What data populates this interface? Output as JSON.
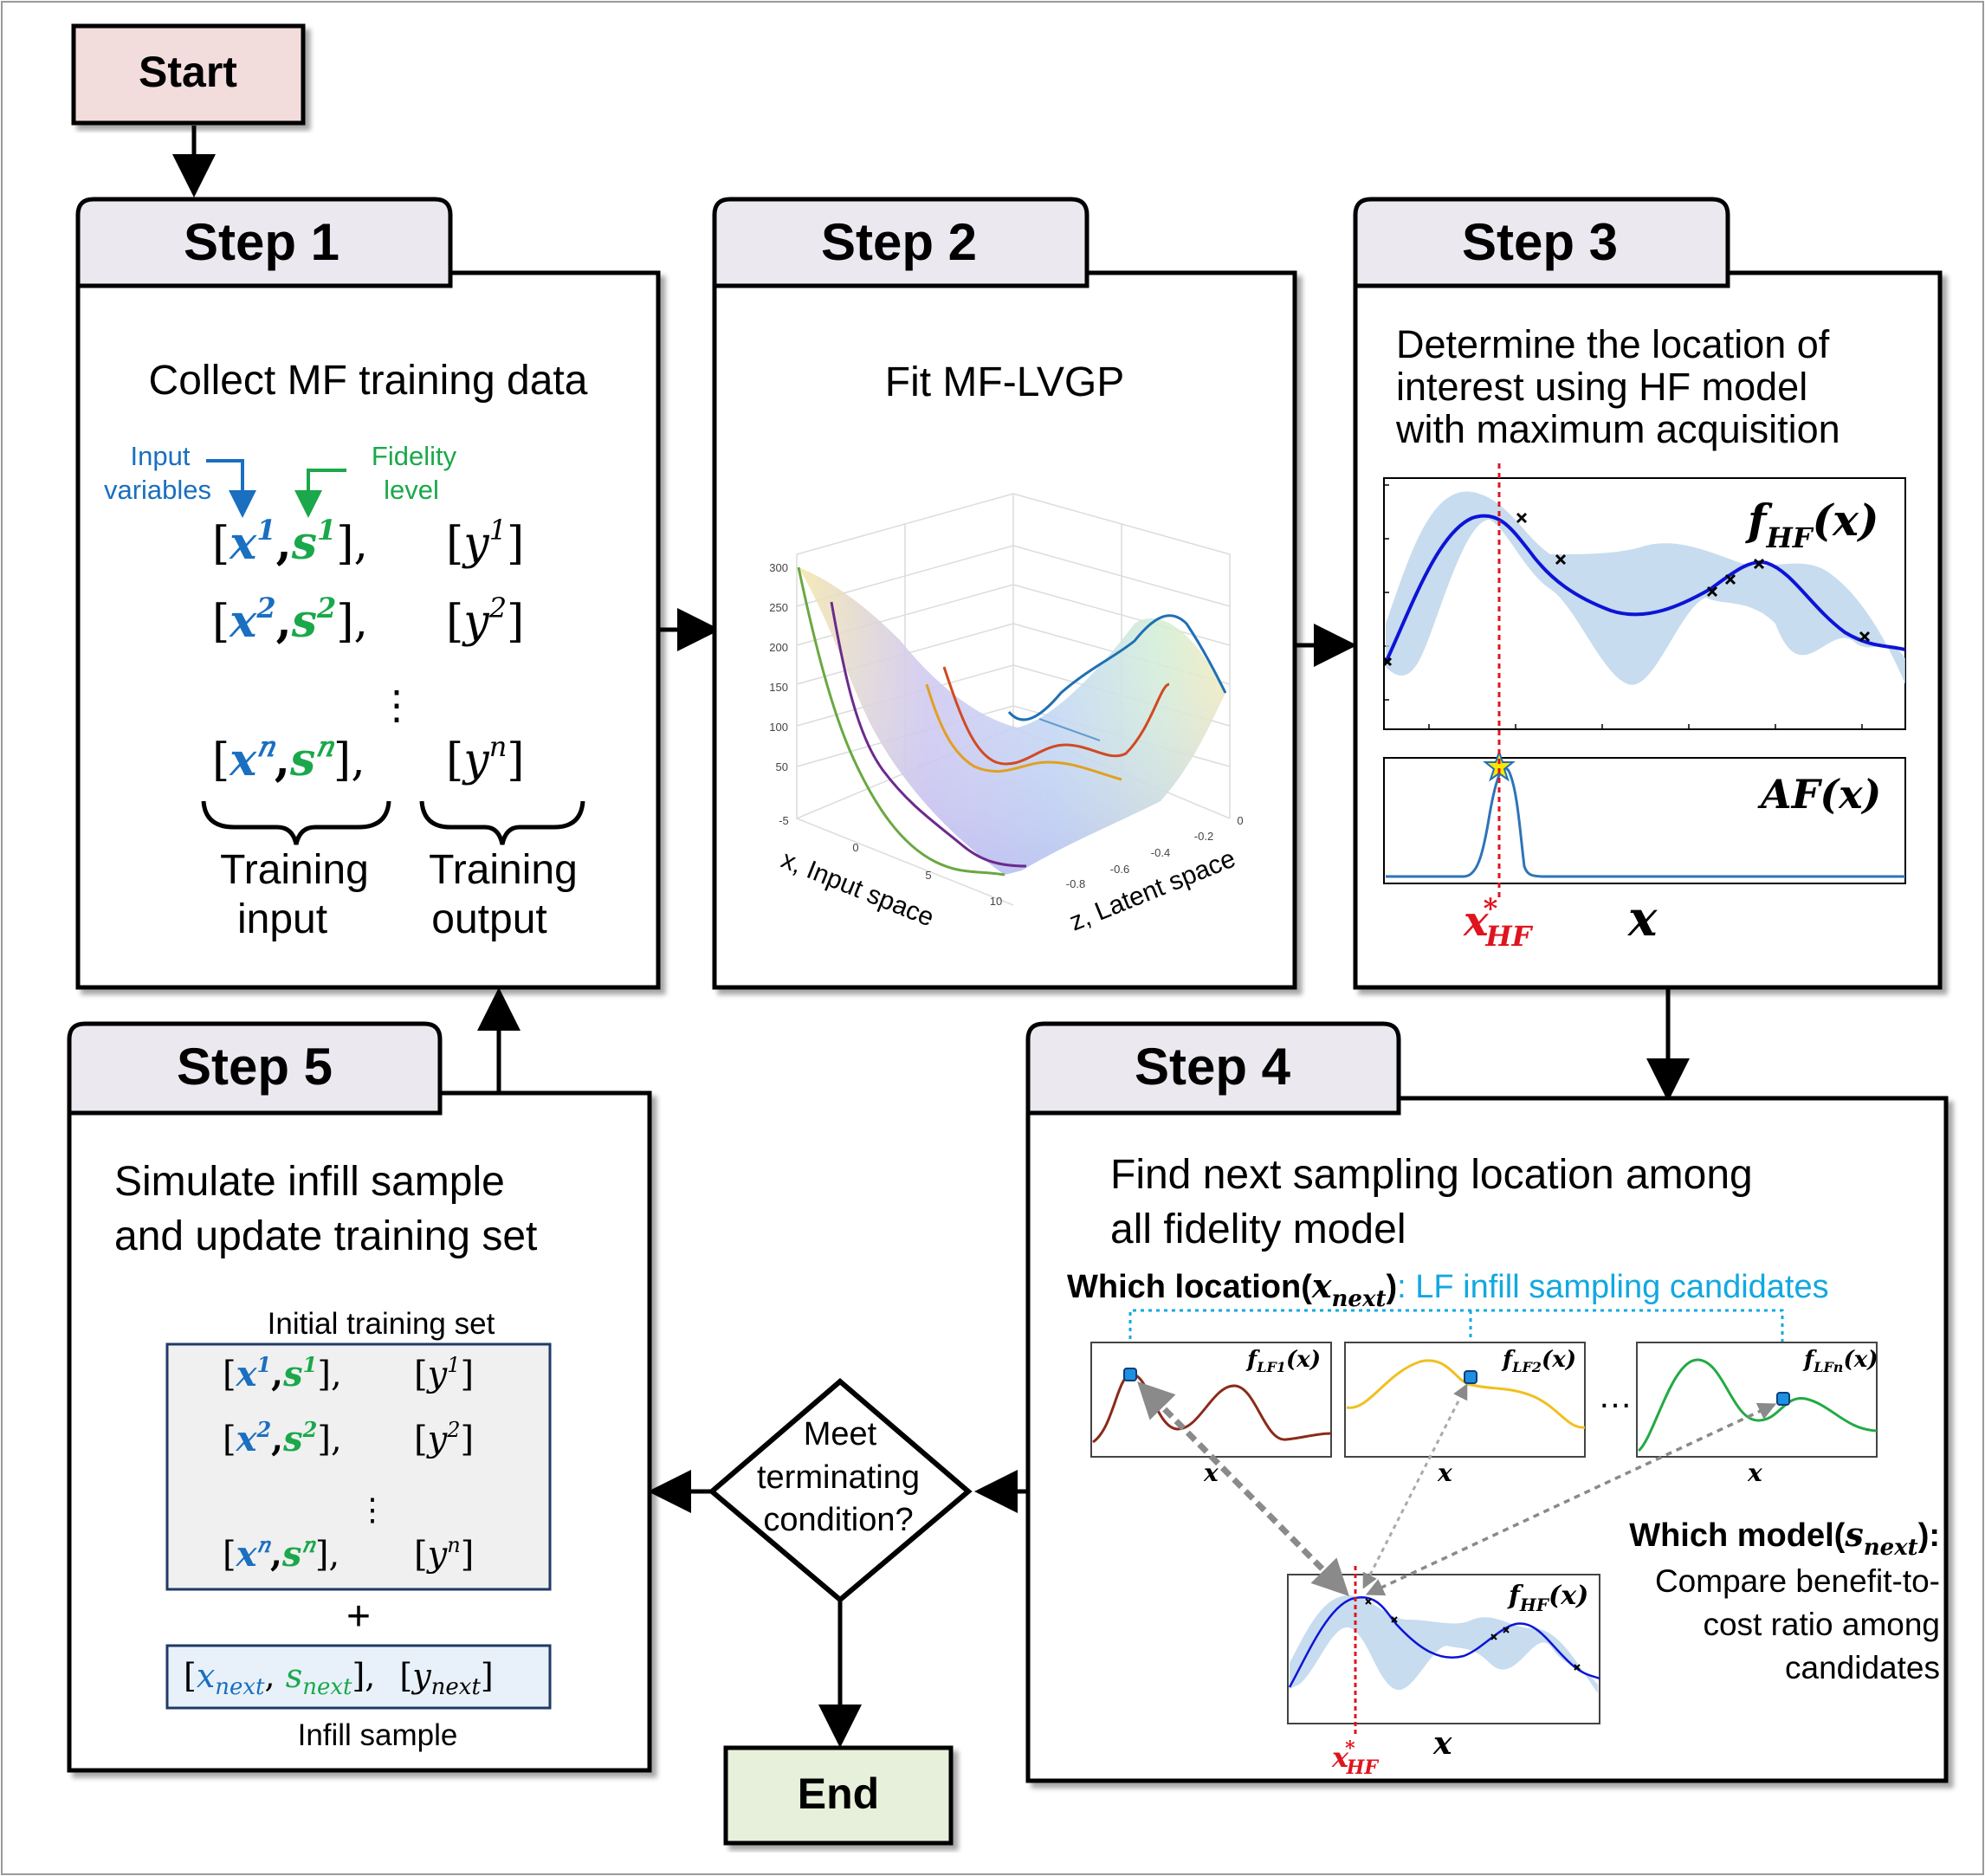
{
  "start": "Start",
  "end": "End",
  "step1": {
    "tab": "Step 1",
    "title": "Collect MF training data",
    "input_variables_line1": "Input",
    "input_variables_line2": "variables",
    "fidelity_line1": "Fidelity",
    "fidelity_line2": "level",
    "rows": [
      {
        "x": "𝒙",
        "s": "𝒔",
        "y": "𝑦",
        "sup": "1"
      },
      {
        "x": "𝒙",
        "s": "𝒔",
        "y": "𝑦",
        "sup": "2"
      },
      {
        "x": "𝒙",
        "s": "𝒔",
        "y": "𝑦",
        "sup": "𝑛"
      }
    ],
    "dots": "⋮",
    "training_input_line1": "Training",
    "training_input_line2": "input",
    "training_output_line1": "Training",
    "training_output_line2": "output"
  },
  "step2": {
    "tab": "Step 2",
    "title": "Fit MF-LVGP",
    "z_ticks": [
      "300",
      "250",
      "200",
      "150",
      "100",
      "50"
    ],
    "x_ticks": [
      "-5",
      "0",
      "5",
      "10"
    ],
    "latent_ticks": [
      "-0.8",
      "-0.6",
      "-0.4",
      "-0.2",
      "0"
    ],
    "x_axis_label": "x, Input space",
    "z_axis_label": "z, Latent space"
  },
  "step3": {
    "tab": "Step 3",
    "title_line1": "Determine the location of",
    "title_line2": "interest using HF model",
    "title_line3": "with maximum acquisition",
    "f_label": "f",
    "f_sub": "HF",
    "f_arg": "(x)",
    "af_label": "AF(x)",
    "x_star": "x",
    "x_star_sup": "*",
    "x_star_sub": "HF",
    "x_axis": "x"
  },
  "step4": {
    "tab": "Step 4",
    "title_line1": "Find next sampling location among",
    "title_line2": "all fidelity model",
    "which_location": "Which location(",
    "x_next": "x",
    "x_next_sub": "next",
    "close_paren": ")",
    "lf_candidates": ": LF infill sampling candidates",
    "lf1": "LF1",
    "lf2": "LF2",
    "lfn": "LFn",
    "f": "f",
    "arg": "(x)",
    "ellipsis": "…",
    "x_axis": "x",
    "which_model": "Which model(",
    "s_next": "s",
    "s_next_sub": "next",
    "which_model_close": "):",
    "compare_line1": "Compare benefit-to-",
    "compare_line2": "cost ratio among",
    "compare_line3": "candidates",
    "hf": "HF"
  },
  "decision": {
    "line1": "Meet",
    "line2": "terminating",
    "line3": "condition?"
  },
  "step5": {
    "tab": "Step 5",
    "title_line1": "Simulate infill sample",
    "title_line2": "and update training set",
    "initial_set": "Initial training set",
    "plus": "+",
    "infill_sample": "Infill sample",
    "next_x": "x",
    "next_s": "s",
    "next_y": "y",
    "next_sub": "next"
  },
  "colors": {
    "blue": "#1a6fc0",
    "green": "#1aa84a",
    "red": "#e0141e",
    "cyan": "#12a8e0",
    "start_fill": "#f3dcdc",
    "end_fill": "#e7f0db",
    "tab_fill": "#ebe9ef"
  }
}
